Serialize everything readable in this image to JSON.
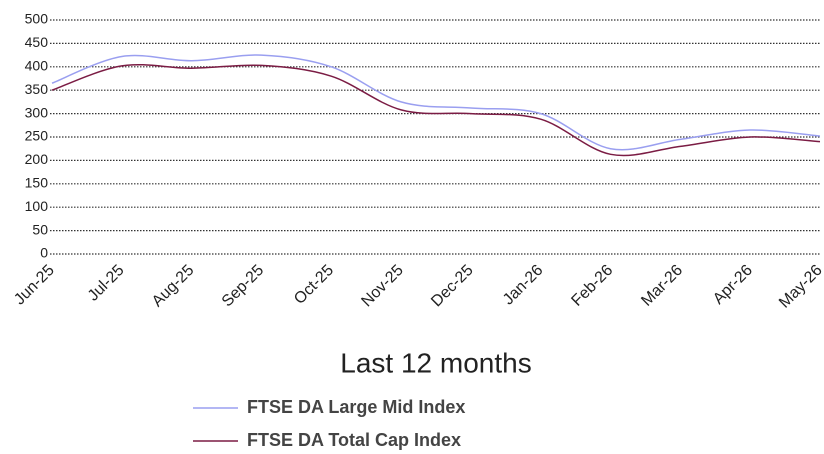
{
  "chart_data": {
    "type": "line",
    "title": "Last 12 months",
    "categories": [
      "Jun-25",
      "Jul-25",
      "Aug-25",
      "Sep-25",
      "Oct-25",
      "Nov-25",
      "Dec-25",
      "Jan-26",
      "Feb-26",
      "Mar-26",
      "Apr-26",
      "May-26"
    ],
    "series": [
      {
        "name": "FTSE DA Large Mid Index",
        "color": "#9a9ff0",
        "values": [
          365,
          422,
          413,
          425,
          400,
          325,
          312,
          300,
          225,
          245,
          265,
          252
        ]
      },
      {
        "name": "FTSE DA Total Cap Index",
        "color": "#7b1c44",
        "values": [
          350,
          402,
          397,
          403,
          380,
          308,
          300,
          288,
          213,
          230,
          250,
          240
        ]
      }
    ],
    "ylim": [
      0,
      500
    ],
    "yticks": [
      0,
      50,
      100,
      150,
      200,
      250,
      300,
      350,
      400,
      450,
      500
    ],
    "grid": true
  }
}
